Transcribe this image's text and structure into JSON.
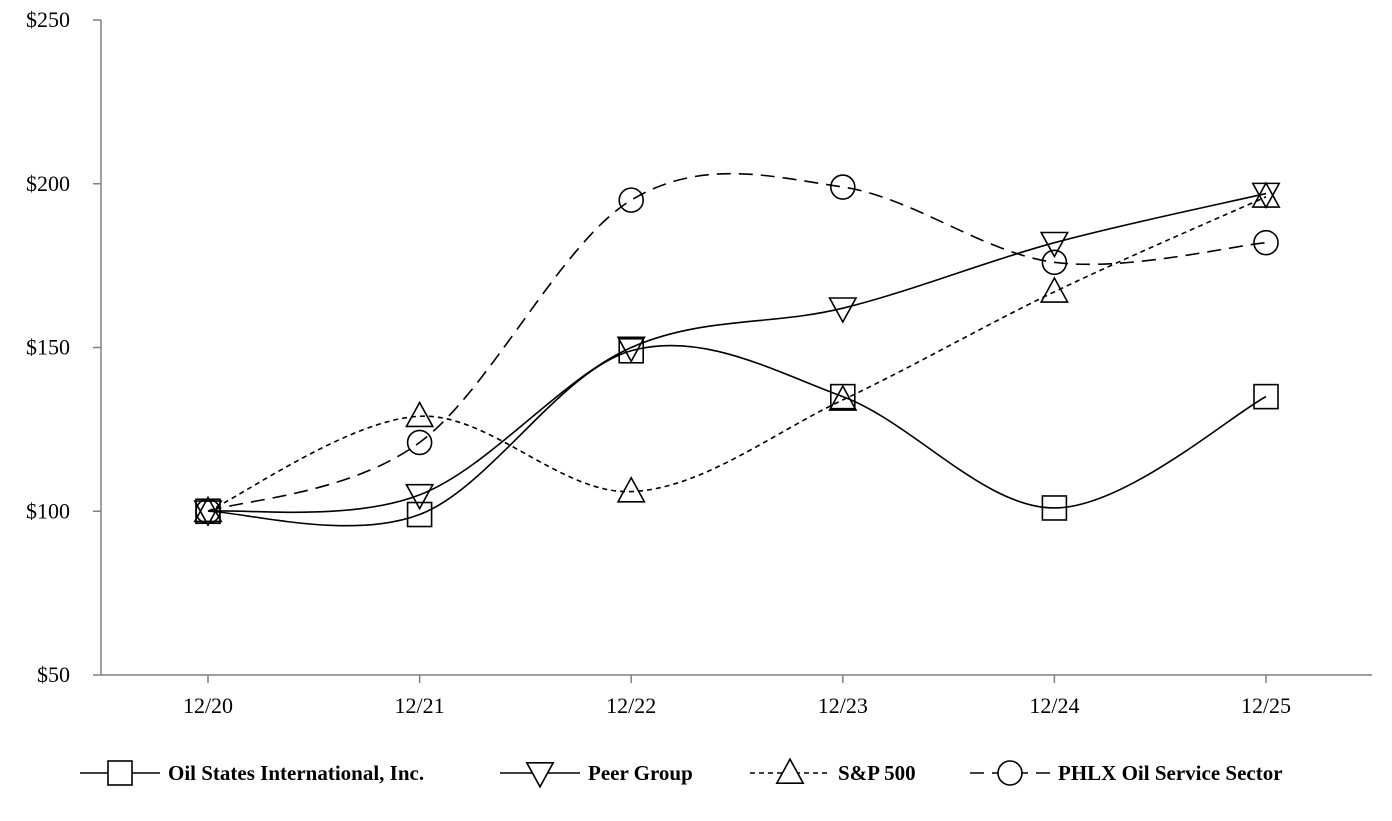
{
  "chart_data": {
    "type": "line",
    "title": "",
    "xlabel": "",
    "ylabel": "",
    "categories": [
      "12/20",
      "12/21",
      "12/22",
      "12/23",
      "12/24",
      "12/25"
    ],
    "ylim": [
      50,
      250
    ],
    "yticks": [
      50,
      100,
      150,
      200,
      250
    ],
    "ytick_labels": [
      "$50",
      "$100",
      "$150",
      "$200",
      "$250"
    ],
    "grid": false,
    "legend_position": "bottom",
    "series": [
      {
        "name": "Oil States International, Inc.",
        "marker": "square",
        "line": "solid",
        "values": [
          100,
          99,
          149,
          135,
          101,
          135
        ]
      },
      {
        "name": "Peer Group",
        "marker": "triangle-down",
        "line": "solid",
        "values": [
          100,
          105,
          150,
          162,
          182,
          197
        ]
      },
      {
        "name": "S&P 500",
        "marker": "triangle-up",
        "line": "dotted",
        "values": [
          100,
          129,
          106,
          134,
          167,
          196
        ]
      },
      {
        "name": "PHLX Oil Service Sector",
        "marker": "circle",
        "line": "dashed",
        "values": [
          100,
          121,
          195,
          199,
          176,
          182
        ]
      }
    ],
    "colors": {
      "line": "#000000",
      "axis": "#808080",
      "background": "#ffffff"
    }
  }
}
